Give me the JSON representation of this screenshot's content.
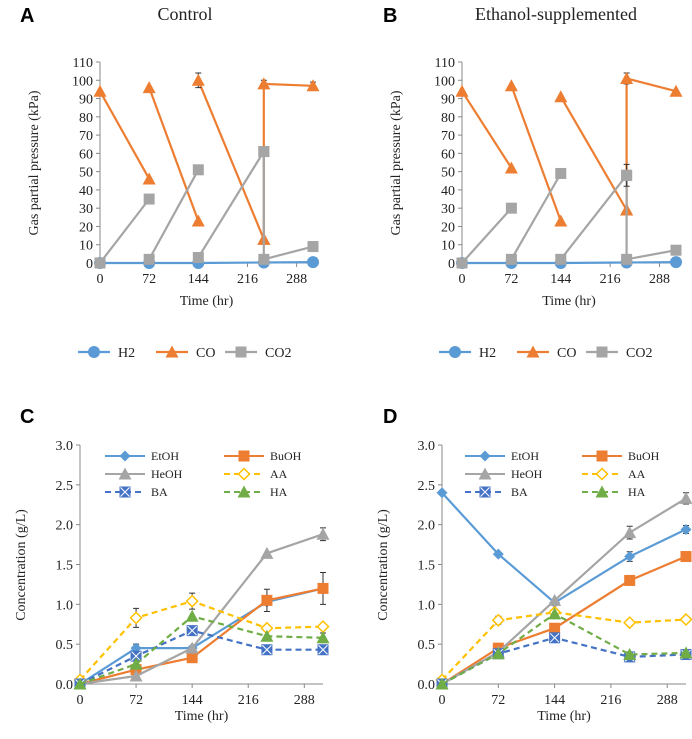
{
  "chart_data": [
    {
      "panel": "A",
      "title": "Control",
      "type": "line",
      "xlabel": "Time (hr)",
      "ylabel": "Gas partial pressure (kPa)",
      "xticks": [
        0,
        72,
        144,
        216,
        288
      ],
      "xlim": [
        0,
        312
      ],
      "yticks": [
        0,
        10,
        20,
        30,
        40,
        50,
        60,
        70,
        80,
        90,
        100,
        110
      ],
      "ylim": [
        0,
        110
      ],
      "legend_position": "bottom",
      "series": [
        {
          "name": "H2",
          "color": "#5b9bd5",
          "marker": "circle",
          "dashed": false,
          "segments": [
            [
              [
                0,
                0
              ],
              [
                72,
                0
              ],
              [
                144,
                0
              ],
              [
                240,
                0.3
              ],
              [
                312,
                0.5
              ]
            ]
          ]
        },
        {
          "name": "CO",
          "color": "#ed7d31",
          "marker": "triangle",
          "dashed": false,
          "segments": [
            [
              [
                0,
                94
              ],
              [
                72,
                46
              ]
            ],
            [
              [
                72,
                96
              ],
              [
                144,
                23
              ]
            ],
            [
              [
                144,
                100
              ],
              [
                240,
                13
              ]
            ],
            [
              [
                240,
                13
              ],
              [
                240,
                98
              ],
              [
                312,
                97
              ]
            ]
          ],
          "error_bars": [
            {
              "x": 144,
              "y": 100,
              "err": 4
            },
            {
              "x": 240,
              "y": 98,
              "err": 2
            },
            {
              "x": 312,
              "y": 97,
              "err": 2
            }
          ]
        },
        {
          "name": "CO2",
          "color": "#a5a5a5",
          "marker": "square",
          "dashed": false,
          "segments": [
            [
              [
                0,
                0
              ],
              [
                72,
                35
              ]
            ],
            [
              [
                72,
                2
              ],
              [
                144,
                51
              ]
            ],
            [
              [
                144,
                3
              ],
              [
                240,
                61
              ]
            ],
            [
              [
                240,
                61
              ],
              [
                240,
                2
              ],
              [
                312,
                9
              ]
            ]
          ]
        }
      ]
    },
    {
      "panel": "B",
      "title": "Ethanol-supplemented",
      "type": "line",
      "xlabel": "Time (hr)",
      "ylabel": "Gas partial pressure (kPa)",
      "xticks": [
        0,
        72,
        144,
        216,
        288
      ],
      "xlim": [
        0,
        312
      ],
      "yticks": [
        0,
        10,
        20,
        30,
        40,
        50,
        60,
        70,
        80,
        90,
        100,
        110
      ],
      "ylim": [
        0,
        110
      ],
      "legend_position": "bottom",
      "series": [
        {
          "name": "H2",
          "color": "#5b9bd5",
          "marker": "circle",
          "dashed": false,
          "segments": [
            [
              [
                0,
                0
              ],
              [
                72,
                0
              ],
              [
                144,
                0
              ],
              [
                240,
                0.3
              ],
              [
                312,
                0.5
              ]
            ]
          ]
        },
        {
          "name": "CO",
          "color": "#ed7d31",
          "marker": "triangle",
          "dashed": false,
          "segments": [
            [
              [
                0,
                94
              ],
              [
                72,
                52
              ]
            ],
            [
              [
                72,
                97
              ],
              [
                144,
                23
              ]
            ],
            [
              [
                144,
                91
              ],
              [
                240,
                29
              ]
            ],
            [
              [
                240,
                29
              ],
              [
                240,
                101
              ],
              [
                312,
                94
              ]
            ]
          ],
          "error_bars": [
            {
              "x": 240,
              "y": 101,
              "err": 3
            }
          ]
        },
        {
          "name": "CO2",
          "color": "#a5a5a5",
          "marker": "square",
          "dashed": false,
          "segments": [
            [
              [
                0,
                0
              ],
              [
                72,
                30
              ]
            ],
            [
              [
                72,
                2
              ],
              [
                144,
                49
              ]
            ],
            [
              [
                144,
                2
              ],
              [
                240,
                48
              ]
            ],
            [
              [
                240,
                48
              ],
              [
                240,
                2
              ],
              [
                312,
                7
              ]
            ]
          ],
          "error_bars": [
            {
              "x": 240,
              "y": 48,
              "err": 6
            }
          ]
        }
      ]
    },
    {
      "panel": "C",
      "title": "",
      "type": "line",
      "xlabel": "Time (hr)",
      "ylabel": "Concentration (g/L)",
      "xticks": [
        0,
        72,
        144,
        216,
        288
      ],
      "xlim": [
        0,
        312
      ],
      "yticks": [
        "0.0",
        "0.5",
        "1.0",
        "1.5",
        "2.0",
        "2.5",
        "3.0"
      ],
      "ylim": [
        0,
        3
      ],
      "legend_position": "top",
      "series": [
        {
          "name": "EtOH",
          "color": "#5b9bd5",
          "marker": "diamond",
          "dashed": false,
          "points": [
            [
              0,
              0
            ],
            [
              72,
              0.45
            ],
            [
              144,
              0.45
            ],
            [
              240,
              1.03
            ],
            [
              312,
              1.2
            ]
          ],
          "errors": [
            0,
            0.05,
            0,
            0,
            0
          ]
        },
        {
          "name": "BuOH",
          "color": "#ed7d31",
          "marker": "square",
          "dashed": false,
          "points": [
            [
              0,
              0
            ],
            [
              72,
              0.18
            ],
            [
              144,
              0.33
            ],
            [
              240,
              1.05
            ],
            [
              312,
              1.2
            ]
          ],
          "errors": [
            0,
            0,
            0,
            0.14,
            0.2
          ]
        },
        {
          "name": "HeOH",
          "color": "#a5a5a5",
          "marker": "triangle",
          "dashed": false,
          "points": [
            [
              0,
              0
            ],
            [
              72,
              0.1
            ],
            [
              144,
              0.45
            ],
            [
              240,
              1.64
            ],
            [
              312,
              1.88
            ]
          ],
          "errors": [
            0,
            0,
            0,
            0,
            0.08
          ]
        },
        {
          "name": "AA",
          "color": "#ffc000",
          "marker": "diamond-open",
          "dashed": true,
          "points": [
            [
              0,
              0.05
            ],
            [
              72,
              0.83
            ],
            [
              144,
              1.04
            ],
            [
              240,
              0.7
            ],
            [
              312,
              0.72
            ]
          ],
          "errors": [
            0,
            0.12,
            0.1,
            0.04,
            0
          ]
        },
        {
          "name": "BA",
          "color": "#4472c4",
          "marker": "square-x",
          "dashed": true,
          "points": [
            [
              0,
              0
            ],
            [
              72,
              0.35
            ],
            [
              144,
              0.67
            ],
            [
              240,
              0.43
            ],
            [
              312,
              0.43
            ]
          ],
          "errors": [
            0,
            0,
            0.05,
            0.05,
            0
          ]
        },
        {
          "name": "HA",
          "color": "#70ad47",
          "marker": "triangle",
          "dashed": true,
          "points": [
            [
              0,
              0
            ],
            [
              72,
              0.25
            ],
            [
              144,
              0.85
            ],
            [
              240,
              0.6
            ],
            [
              312,
              0.58
            ]
          ],
          "errors": [
            0,
            0,
            0,
            0,
            0.06
          ]
        }
      ]
    },
    {
      "panel": "D",
      "title": "",
      "type": "line",
      "xlabel": "Time (hr)",
      "ylabel": "Concentration (g/L)",
      "xticks": [
        0,
        72,
        144,
        216,
        288
      ],
      "xlim": [
        0,
        312
      ],
      "yticks": [
        "0.0",
        "0.5",
        "1.0",
        "1.5",
        "2.0",
        "2.5",
        "3.0"
      ],
      "ylim": [
        0,
        3
      ],
      "legend_position": "top",
      "series": [
        {
          "name": "EtOH",
          "color": "#5b9bd5",
          "marker": "diamond",
          "dashed": false,
          "points": [
            [
              0,
              2.4
            ],
            [
              72,
              1.63
            ],
            [
              144,
              1.02
            ],
            [
              240,
              1.6
            ],
            [
              312,
              1.94
            ]
          ],
          "errors": [
            0,
            0,
            0,
            0.06,
            0.05
          ]
        },
        {
          "name": "BuOH",
          "color": "#ed7d31",
          "marker": "square",
          "dashed": false,
          "points": [
            [
              0,
              0
            ],
            [
              72,
              0.45
            ],
            [
              144,
              0.7
            ],
            [
              240,
              1.3
            ],
            [
              312,
              1.6
            ]
          ],
          "errors": [
            0,
            0,
            0,
            0,
            0
          ]
        },
        {
          "name": "HeOH",
          "color": "#a5a5a5",
          "marker": "triangle",
          "dashed": false,
          "points": [
            [
              0,
              0
            ],
            [
              72,
              0.4
            ],
            [
              144,
              1.05
            ],
            [
              240,
              1.9
            ],
            [
              312,
              2.33
            ]
          ],
          "errors": [
            0,
            0,
            0,
            0.08,
            0.07
          ]
        },
        {
          "name": "AA",
          "color": "#ffc000",
          "marker": "diamond-open",
          "dashed": true,
          "points": [
            [
              0,
              0.05
            ],
            [
              72,
              0.8
            ],
            [
              144,
              0.9
            ],
            [
              240,
              0.77
            ],
            [
              312,
              0.81
            ]
          ],
          "errors": [
            0,
            0.05,
            0,
            0.04,
            0
          ]
        },
        {
          "name": "BA",
          "color": "#4472c4",
          "marker": "square-x",
          "dashed": true,
          "points": [
            [
              0,
              0
            ],
            [
              72,
              0.38
            ],
            [
              144,
              0.58
            ],
            [
              240,
              0.34
            ],
            [
              312,
              0.37
            ]
          ],
          "errors": [
            0,
            0,
            0,
            0,
            0
          ]
        },
        {
          "name": "HA",
          "color": "#70ad47",
          "marker": "triangle",
          "dashed": true,
          "points": [
            [
              0,
              0
            ],
            [
              72,
              0.38
            ],
            [
              144,
              0.88
            ],
            [
              240,
              0.37
            ],
            [
              312,
              0.39
            ]
          ],
          "errors": [
            0,
            0,
            0,
            0,
            0
          ]
        }
      ]
    }
  ]
}
